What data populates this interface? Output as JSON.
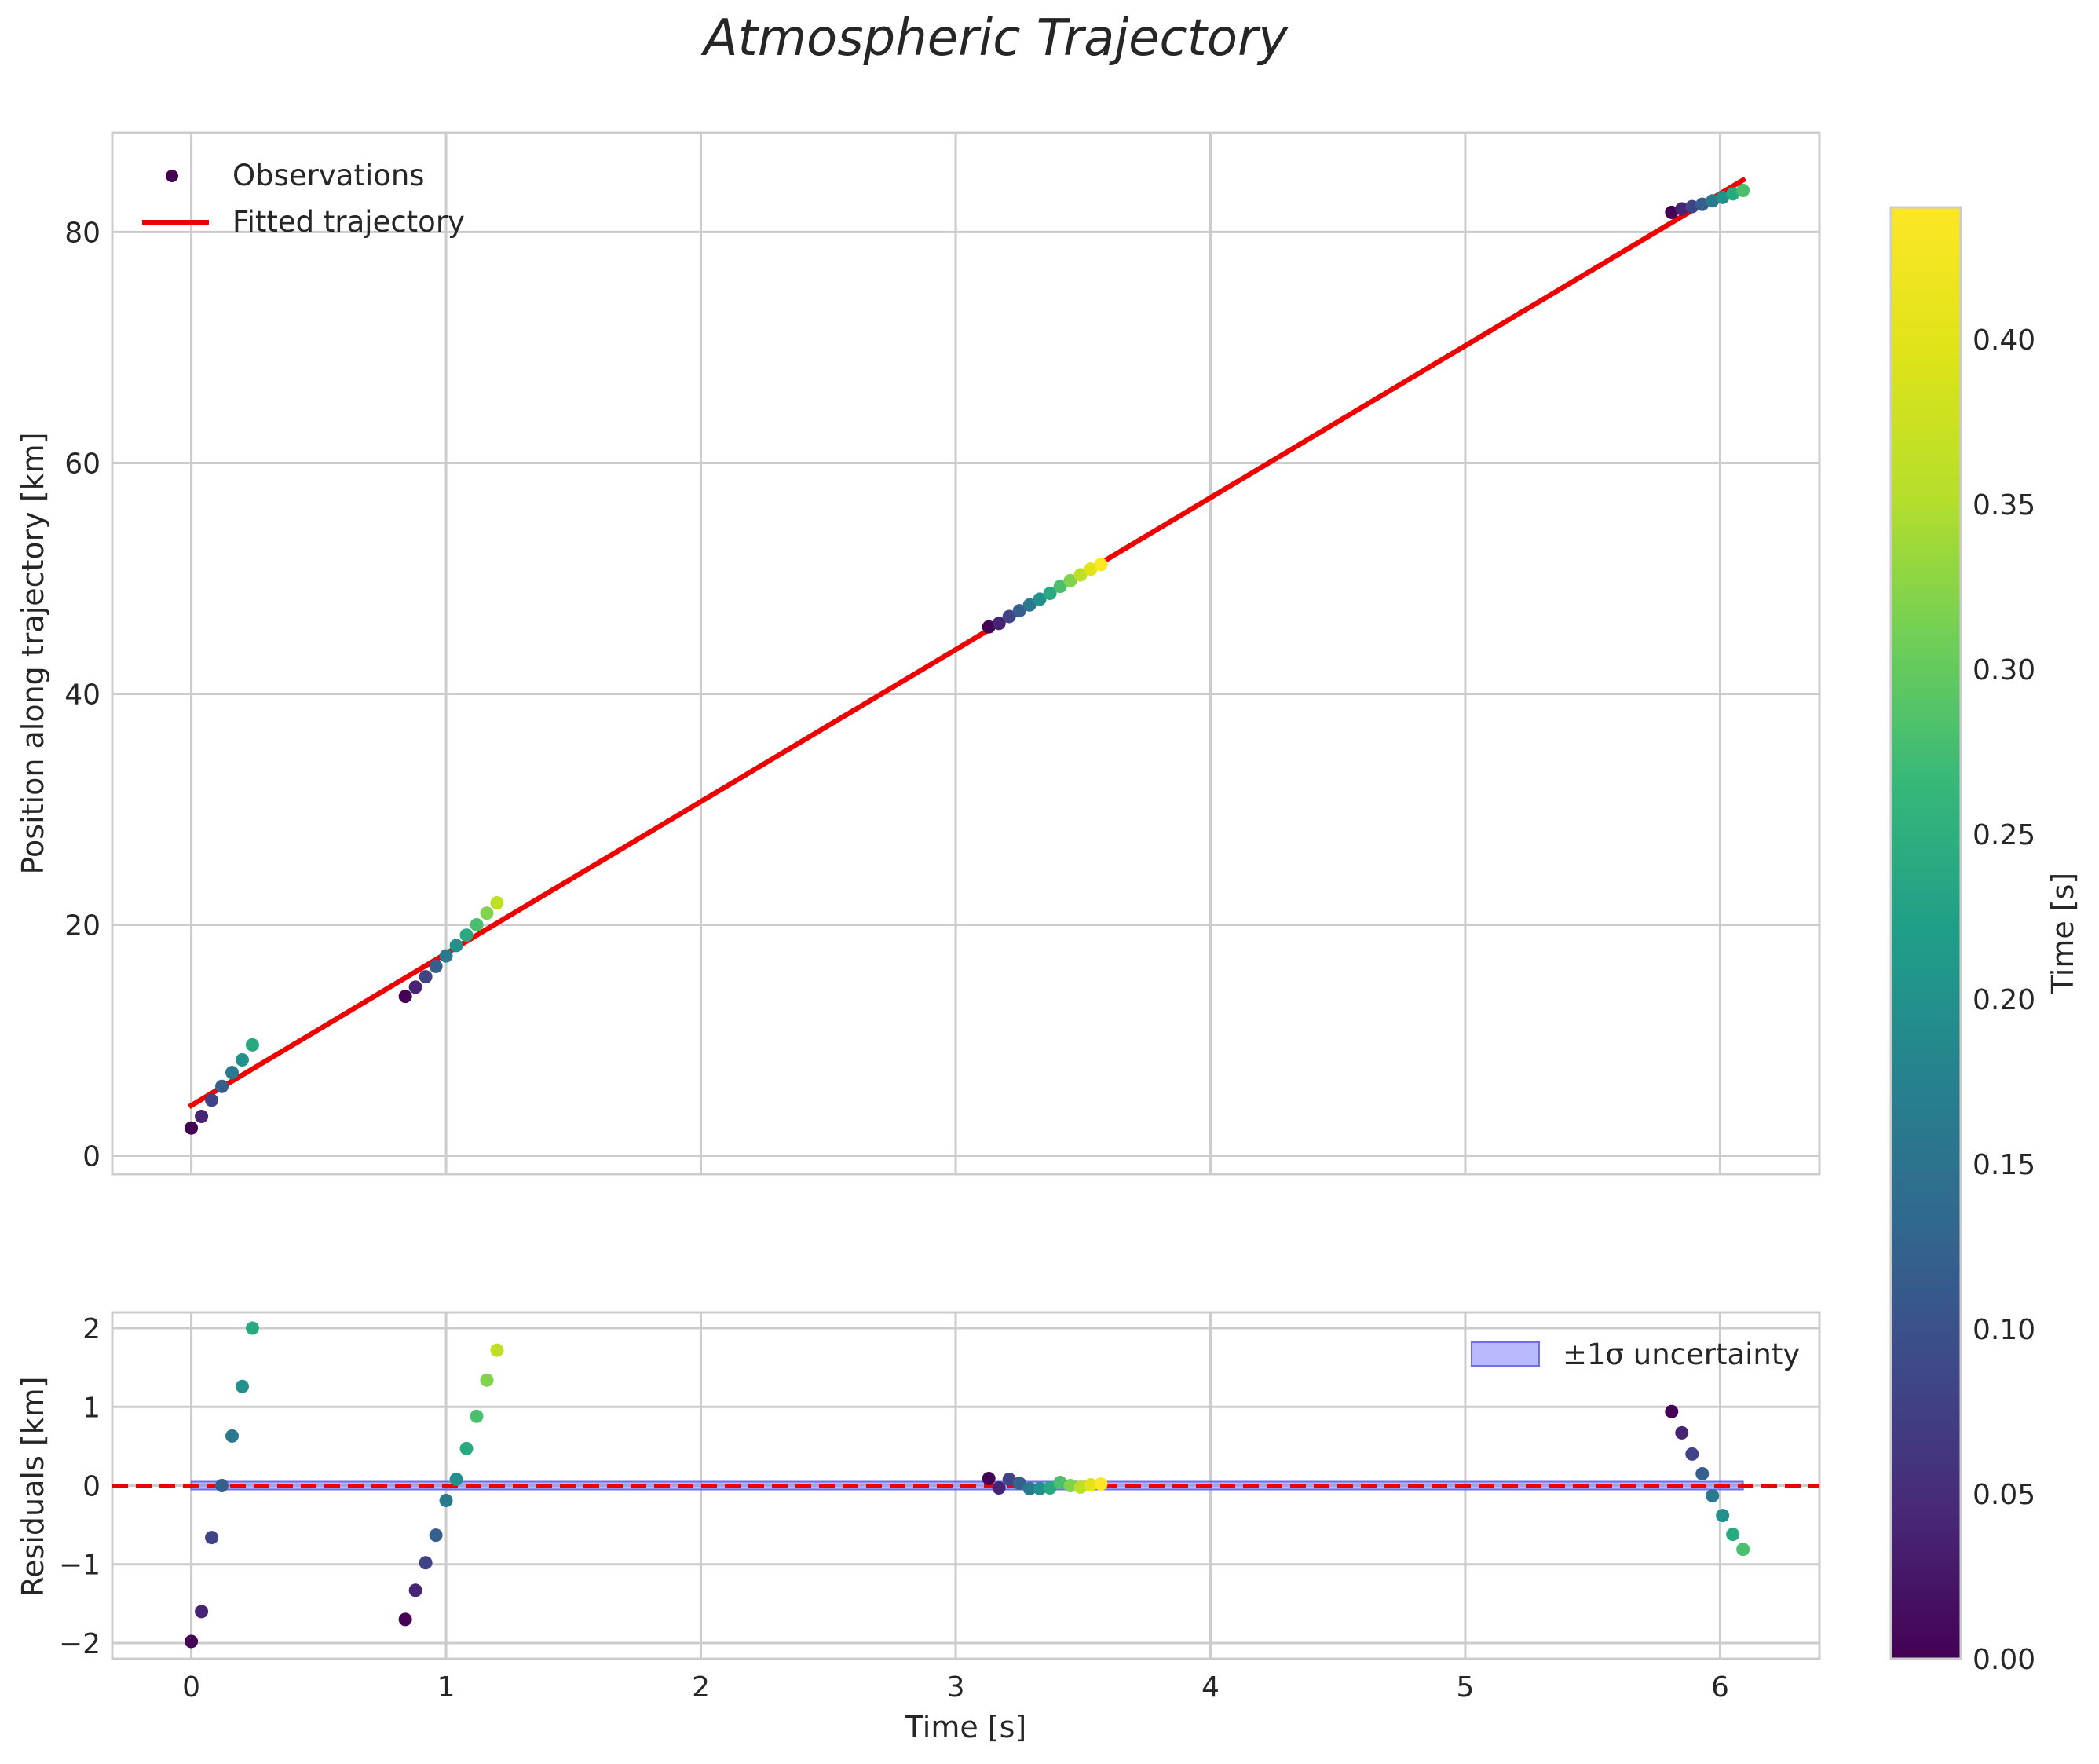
{
  "chart_data": {
    "title": "Atmospheric Trajectory",
    "x_ticks": [
      0,
      1,
      2,
      3,
      4,
      5,
      6
    ],
    "x_label": "Time [s]",
    "xlim": [
      -0.31,
      6.39
    ],
    "colorbar": {
      "label": "Time [s]",
      "range": [
        0.0,
        0.44
      ],
      "ticks": [
        0.0,
        0.05,
        0.1,
        0.15,
        0.2,
        0.25,
        0.3,
        0.35,
        0.4
      ],
      "tick_labels": [
        "0.00",
        "0.05",
        "0.10",
        "0.15",
        "0.20",
        "0.25",
        "0.30",
        "0.35",
        "0.40"
      ],
      "colormap": "viridis"
    },
    "panels": [
      {
        "type": "scatter+line",
        "ylabel": "Position along trajectory [km]",
        "ylim": [
          -1.6,
          88.6
        ],
        "y_ticks": [
          0,
          20,
          40,
          60,
          80
        ],
        "legend": {
          "position": "upper-left",
          "entries": [
            "Observations",
            "Fitted trajectory"
          ]
        },
        "fit_line": {
          "name": "Fitted trajectory",
          "color": "#ee0000",
          "x": [
            0,
            6.09
          ],
          "y": [
            4.35,
            84.5
          ]
        },
        "observations": [
          {
            "t": 0.0,
            "y": 2.4,
            "c": 0.0
          },
          {
            "t": 0.04,
            "y": 3.4,
            "c": 0.04
          },
          {
            "t": 0.08,
            "y": 4.8,
            "c": 0.08
          },
          {
            "t": 0.12,
            "y": 6.0,
            "c": 0.12
          },
          {
            "t": 0.16,
            "y": 7.2,
            "c": 0.16
          },
          {
            "t": 0.2,
            "y": 8.3,
            "c": 0.2
          },
          {
            "t": 0.24,
            "y": 9.6,
            "c": 0.24
          },
          {
            "t": 0.84,
            "y": 13.8,
            "c": 0.0
          },
          {
            "t": 0.88,
            "y": 14.6,
            "c": 0.04
          },
          {
            "t": 0.92,
            "y": 15.5,
            "c": 0.08
          },
          {
            "t": 0.96,
            "y": 16.4,
            "c": 0.12
          },
          {
            "t": 1.0,
            "y": 17.3,
            "c": 0.16
          },
          {
            "t": 1.04,
            "y": 18.2,
            "c": 0.2
          },
          {
            "t": 1.08,
            "y": 19.1,
            "c": 0.24
          },
          {
            "t": 1.12,
            "y": 20.0,
            "c": 0.28
          },
          {
            "t": 1.16,
            "y": 21.0,
            "c": 0.32
          },
          {
            "t": 1.2,
            "y": 21.9,
            "c": 0.36
          },
          {
            "t": 3.13,
            "y": 45.8,
            "c": 0.0
          },
          {
            "t": 3.17,
            "y": 46.1,
            "c": 0.04
          },
          {
            "t": 3.21,
            "y": 46.7,
            "c": 0.08
          },
          {
            "t": 3.25,
            "y": 47.2,
            "c": 0.12
          },
          {
            "t": 3.29,
            "y": 47.7,
            "c": 0.16
          },
          {
            "t": 3.33,
            "y": 48.2,
            "c": 0.2
          },
          {
            "t": 3.37,
            "y": 48.7,
            "c": 0.24
          },
          {
            "t": 3.41,
            "y": 49.3,
            "c": 0.28
          },
          {
            "t": 3.45,
            "y": 49.8,
            "c": 0.32
          },
          {
            "t": 3.49,
            "y": 50.3,
            "c": 0.36
          },
          {
            "t": 3.53,
            "y": 50.8,
            "c": 0.4
          },
          {
            "t": 3.57,
            "y": 51.2,
            "c": 0.44
          },
          {
            "t": 5.81,
            "y": 81.7,
            "c": 0.0
          },
          {
            "t": 5.85,
            "y": 82.0,
            "c": 0.04
          },
          {
            "t": 5.89,
            "y": 82.2,
            "c": 0.08
          },
          {
            "t": 5.93,
            "y": 82.4,
            "c": 0.12
          },
          {
            "t": 5.97,
            "y": 82.7,
            "c": 0.16
          },
          {
            "t": 6.01,
            "y": 83.0,
            "c": 0.2
          },
          {
            "t": 6.05,
            "y": 83.3,
            "c": 0.24
          },
          {
            "t": 6.09,
            "y": 83.6,
            "c": 0.28
          }
        ]
      },
      {
        "type": "scatter+band",
        "ylabel": "Residuals [km]",
        "ylim": [
          -2.2,
          2.2
        ],
        "y_ticks": [
          -2,
          -1,
          0,
          1,
          2
        ],
        "y_tick_labels": [
          "−2",
          "−1",
          "0",
          "1",
          "2"
        ],
        "legend": {
          "position": "upper-right",
          "entries": [
            "±1σ uncertainty"
          ]
        },
        "zero_line": {
          "y": 0,
          "color": "#ee0000",
          "style": "dashed"
        },
        "uncertainty_band": {
          "name": "±1σ uncertainty",
          "color": "#8080ff",
          "sigma": 0.05,
          "x": [
            0,
            6.09
          ]
        },
        "residuals": [
          {
            "t": 0.0,
            "y": -1.98,
            "c": 0.0
          },
          {
            "t": 0.04,
            "y": -1.6,
            "c": 0.04
          },
          {
            "t": 0.08,
            "y": -0.66,
            "c": 0.08
          },
          {
            "t": 0.12,
            "y": 0.0,
            "c": 0.12
          },
          {
            "t": 0.16,
            "y": 0.63,
            "c": 0.16
          },
          {
            "t": 0.2,
            "y": 1.26,
            "c": 0.2
          },
          {
            "t": 0.24,
            "y": 2.0,
            "c": 0.24
          },
          {
            "t": 0.84,
            "y": -1.7,
            "c": 0.0
          },
          {
            "t": 0.88,
            "y": -1.33,
            "c": 0.04
          },
          {
            "t": 0.92,
            "y": -0.98,
            "c": 0.08
          },
          {
            "t": 0.96,
            "y": -0.63,
            "c": 0.12
          },
          {
            "t": 1.0,
            "y": -0.19,
            "c": 0.16
          },
          {
            "t": 1.04,
            "y": 0.08,
            "c": 0.2
          },
          {
            "t": 1.08,
            "y": 0.47,
            "c": 0.24
          },
          {
            "t": 1.12,
            "y": 0.88,
            "c": 0.28
          },
          {
            "t": 1.16,
            "y": 1.34,
            "c": 0.32
          },
          {
            "t": 1.2,
            "y": 1.72,
            "c": 0.36
          },
          {
            "t": 3.13,
            "y": 0.09,
            "c": 0.0
          },
          {
            "t": 3.17,
            "y": -0.03,
            "c": 0.04
          },
          {
            "t": 3.21,
            "y": 0.08,
            "c": 0.08
          },
          {
            "t": 3.25,
            "y": 0.03,
            "c": 0.12
          },
          {
            "t": 3.29,
            "y": -0.04,
            "c": 0.16
          },
          {
            "t": 3.33,
            "y": -0.04,
            "c": 0.2
          },
          {
            "t": 3.37,
            "y": -0.03,
            "c": 0.24
          },
          {
            "t": 3.41,
            "y": 0.04,
            "c": 0.28
          },
          {
            "t": 3.45,
            "y": 0.0,
            "c": 0.32
          },
          {
            "t": 3.49,
            "y": -0.02,
            "c": 0.36
          },
          {
            "t": 3.53,
            "y": 0.01,
            "c": 0.4
          },
          {
            "t": 3.57,
            "y": 0.02,
            "c": 0.44
          },
          {
            "t": 5.81,
            "y": 0.94,
            "c": 0.0
          },
          {
            "t": 5.85,
            "y": 0.67,
            "c": 0.04
          },
          {
            "t": 5.89,
            "y": 0.4,
            "c": 0.08
          },
          {
            "t": 5.93,
            "y": 0.15,
            "c": 0.12
          },
          {
            "t": 5.97,
            "y": -0.13,
            "c": 0.16
          },
          {
            "t": 6.01,
            "y": -0.38,
            "c": 0.2
          },
          {
            "t": 6.05,
            "y": -0.62,
            "c": 0.24
          },
          {
            "t": 6.09,
            "y": -0.81,
            "c": 0.28
          }
        ]
      }
    ]
  }
}
